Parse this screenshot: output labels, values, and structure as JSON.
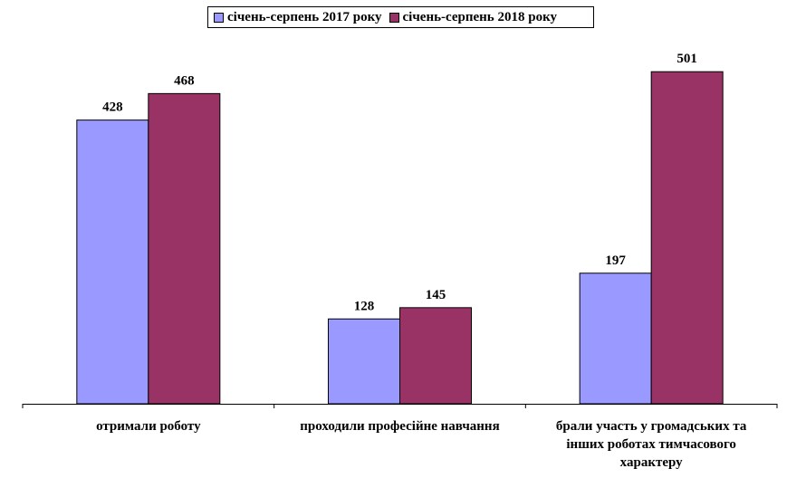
{
  "legend": {
    "series_1": "січень-серпень 2017 року",
    "series_2": "січень-серпень 2018 року"
  },
  "chart_data": {
    "type": "bar",
    "categories": [
      "отримали роботу",
      "проходили професійне навчання",
      "брали участь у громадських та інших роботах тимчасового характеру"
    ],
    "category_lines": [
      [
        "отримали роботу"
      ],
      [
        "проходили професійне навчання"
      ],
      [
        "брали участь у громадських та",
        "інших роботах тимчасового",
        "характеру"
      ]
    ],
    "series": [
      {
        "name": "січень-серпень 2017 року",
        "values": [
          428,
          128,
          197
        ],
        "color": "#9999ff"
      },
      {
        "name": "січень-серпень 2018 року",
        "values": [
          468,
          145,
          501
        ],
        "color": "#993366"
      }
    ],
    "ylim": [
      0,
      560
    ],
    "grid": false,
    "legend_position": "top-center",
    "title": "",
    "xlabel": "",
    "ylabel": ""
  }
}
